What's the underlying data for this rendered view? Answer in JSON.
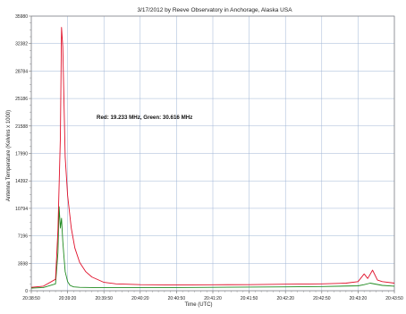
{
  "chart_data": {
    "type": "line",
    "title": "3/17/2012  by  Reeve Observatory  in  Anchorage, Alaska  USA",
    "xlabel": "Time (UTC)",
    "ylabel": "Antenna Temperature (Kelvins x 1000)",
    "annotation": "Red: 19.233 MHz,  Green: 30.616 MHz",
    "x_ticks": [
      "20:38:50",
      "20:39:20",
      "20:39:50",
      "20:40:20",
      "20:40:50",
      "20:41:20",
      "20:41:50",
      "20:42:20",
      "20:42:50",
      "20:43:20",
      "20:43:50"
    ],
    "y_ticks": [
      "0",
      "3598",
      "7196",
      "10794",
      "14392",
      "17990",
      "21588",
      "25186",
      "28784",
      "32382",
      "35980"
    ],
    "xlim_seconds_from_first_tick": [
      0,
      300
    ],
    "ylim": [
      0,
      35980
    ],
    "grid": true,
    "colors": {
      "red": "#e0102a",
      "green": "#1f8a1f",
      "grid": "#9fb4d6",
      "axis": "#7a7a7a"
    },
    "series": [
      {
        "name": "Red: 19.233 MHz",
        "color": "#e0102a",
        "x": [
          0,
          10,
          20,
          22,
          24,
          25,
          26,
          27,
          28,
          30,
          33,
          36,
          40,
          45,
          50,
          60,
          70,
          90,
          120,
          150,
          180,
          210,
          240,
          260,
          270,
          275,
          278,
          282,
          286,
          290,
          300
        ],
        "y": [
          450,
          600,
          1500,
          8000,
          20000,
          34500,
          32000,
          25000,
          17500,
          12500,
          8200,
          5600,
          3700,
          2500,
          1800,
          1100,
          900,
          800,
          750,
          780,
          800,
          850,
          900,
          1000,
          1200,
          2200,
          1600,
          2700,
          1400,
          1200,
          1000
        ]
      },
      {
        "name": "Green: 30.616 MHz",
        "color": "#1f8a1f",
        "x": [
          0,
          10,
          20,
          22,
          23,
          24,
          25,
          26,
          27,
          28,
          30,
          32,
          35,
          40,
          50,
          60,
          90,
          120,
          150,
          180,
          210,
          240,
          270,
          275,
          280,
          290,
          300
        ],
        "y": [
          350,
          420,
          900,
          5000,
          11000,
          8200,
          9500,
          6500,
          4500,
          2500,
          1200,
          700,
          500,
          450,
          420,
          400,
          400,
          420,
          450,
          480,
          500,
          550,
          650,
          800,
          1000,
          700,
          600
        ]
      }
    ]
  }
}
